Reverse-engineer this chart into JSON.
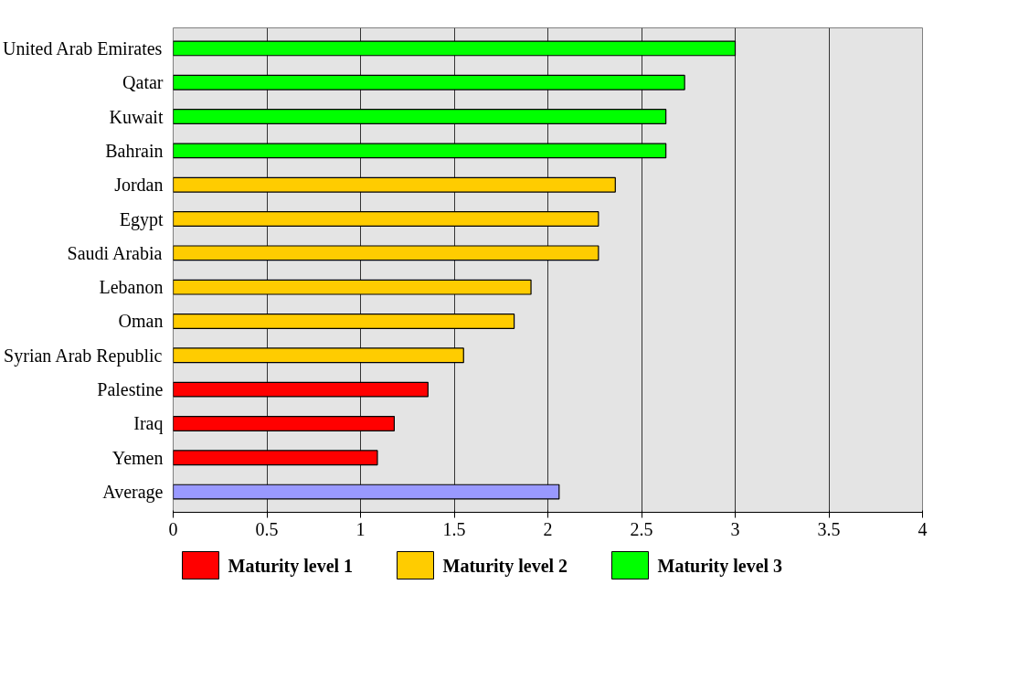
{
  "chart_data": {
    "type": "bar",
    "orientation": "horizontal",
    "categories": [
      "United Arab Emirates",
      "Qatar",
      "Kuwait",
      "Bahrain",
      "Jordan",
      "Egypt",
      "Saudi Arabia",
      "Lebanon",
      "Oman",
      "Syrian Arab Republic",
      "Palestine",
      "Iraq",
      "Yemen",
      "Average"
    ],
    "series": [
      {
        "name": "Maturity level 1",
        "color": "#ff0000",
        "values": [
          null,
          null,
          null,
          null,
          null,
          null,
          null,
          null,
          null,
          null,
          1.36,
          1.18,
          1.09,
          null
        ]
      },
      {
        "name": "Maturity level 2",
        "color": "#ffcc00",
        "values": [
          null,
          null,
          null,
          null,
          2.36,
          2.27,
          2.27,
          1.91,
          1.82,
          1.55,
          null,
          null,
          null,
          null
        ]
      },
      {
        "name": "Maturity level 3",
        "color": "#00ff00",
        "values": [
          3.0,
          2.73,
          2.63,
          2.63,
          null,
          null,
          null,
          null,
          null,
          null,
          null,
          null,
          null,
          null
        ]
      },
      {
        "color": "#9999ff",
        "values": [
          null,
          null,
          null,
          null,
          null,
          null,
          null,
          null,
          null,
          null,
          null,
          null,
          null,
          2.06
        ]
      }
    ],
    "xlim": [
      0,
      4
    ],
    "xticks": [
      0,
      0.5,
      1,
      1.5,
      2,
      2.5,
      3,
      3.5,
      4
    ],
    "grid": "x",
    "legend": "bottom"
  }
}
